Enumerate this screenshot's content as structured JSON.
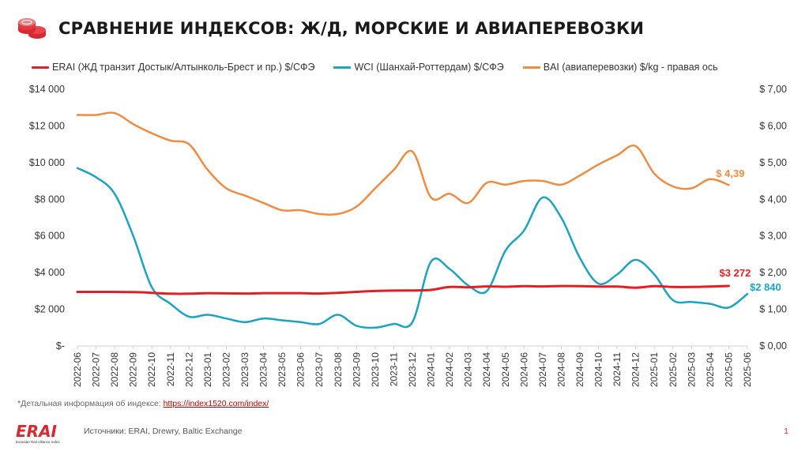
{
  "header": {
    "title": "СРАВНЕНИЕ ИНДЕКСОВ:  Ж/Д, МОРСКИЕ И АВИАПЕРЕВОЗКИ",
    "icon": "coins-icon"
  },
  "legend": [
    {
      "label": "ERAI (ЖД транзит Достык/Алтынколь-Брест и пр.)  $/СФЭ",
      "color": "#e31e24"
    },
    {
      "label": "WCI (Шанхай-Роттердам) $/СФЭ",
      "color": "#1ba3c0"
    },
    {
      "label": "BAI (авиаперевозки) $/kg - правая ось",
      "color": "#f08c42"
    }
  ],
  "chart_data": {
    "type": "line",
    "x": [
      "2022-06",
      "2022-07",
      "2022-08",
      "2022-09",
      "2022-10",
      "2022-11",
      "2022-12",
      "2023-01",
      "2023-02",
      "2023-03",
      "2023-04",
      "2023-05",
      "2023-06",
      "2023-07",
      "2023-08",
      "2023-09",
      "2023-10",
      "2023-11",
      "2023-12",
      "2024-01",
      "2024-02",
      "2024-03",
      "2024-04",
      "2024-05",
      "2024-06",
      "2024-07",
      "2024-08",
      "2024-09",
      "2024-10",
      "2024-11",
      "2024-12",
      "2025-01",
      "2025-02",
      "2025-03",
      "2025-04",
      "2025-05",
      "2025-06"
    ],
    "left_ticks": [
      "$-",
      "$2 000",
      "$4 000",
      "$6 000",
      "$8 000",
      "$10 000",
      "$12 000",
      "$14 000"
    ],
    "right_ticks": [
      "$ 0,00",
      "$ 1,00",
      "$ 2,00",
      "$ 3,00",
      "$ 4,00",
      "$ 5,00",
      "$ 6,00",
      "$ 7,00"
    ],
    "ylim_left": [
      0,
      14000
    ],
    "ylim_right": [
      0,
      7
    ],
    "series": [
      {
        "name": "ERAI",
        "axis": "left",
        "color": "#e31e24",
        "width": 3,
        "values": [
          2950,
          2950,
          2950,
          2940,
          2900,
          2850,
          2850,
          2880,
          2870,
          2860,
          2880,
          2880,
          2880,
          2860,
          2900,
          2950,
          3000,
          3020,
          3030,
          3060,
          3220,
          3200,
          3250,
          3230,
          3260,
          3250,
          3270,
          3260,
          3240,
          3240,
          3180,
          3260,
          3220,
          3220,
          3240,
          3272,
          null
        ],
        "end_label": "$3 272",
        "end_index": 35
      },
      {
        "name": "WCI",
        "axis": "left",
        "color": "#1ba3c0",
        "width": 2.5,
        "values": [
          9700,
          9200,
          8300,
          6000,
          3200,
          2300,
          1600,
          1700,
          1500,
          1300,
          1500,
          1400,
          1300,
          1200,
          1700,
          1100,
          1000,
          1200,
          1300,
          4600,
          4200,
          3300,
          3000,
          5200,
          6300,
          8100,
          7000,
          4800,
          3400,
          3900,
          4700,
          3900,
          2500,
          2400,
          2300,
          2100,
          2840
        ],
        "end_label": "$2 840",
        "end_index": 36
      },
      {
        "name": "BAI",
        "axis": "right",
        "color": "#f08c42",
        "width": 2.5,
        "values": [
          6.3,
          6.3,
          6.35,
          6.05,
          5.8,
          5.6,
          5.5,
          4.8,
          4.3,
          4.1,
          3.9,
          3.7,
          3.7,
          3.6,
          3.6,
          3.8,
          4.3,
          4.8,
          5.3,
          4.05,
          4.15,
          3.9,
          4.45,
          4.4,
          4.5,
          4.5,
          4.4,
          4.65,
          4.95,
          5.2,
          5.45,
          4.7,
          4.35,
          4.3,
          4.55,
          4.39,
          null
        ],
        "end_label": "$ 4,39",
        "end_index": 35
      }
    ]
  },
  "footnote": {
    "text": "*Детальная информация об индексе: ",
    "link": "https://index1520.com/index/"
  },
  "brand": {
    "logo": "ERAI",
    "tagline": "Eurasian Rail Alliance Index"
  },
  "sources": "Источники: ERAI, Drewry, Baltic Exchange",
  "page_number": "1"
}
